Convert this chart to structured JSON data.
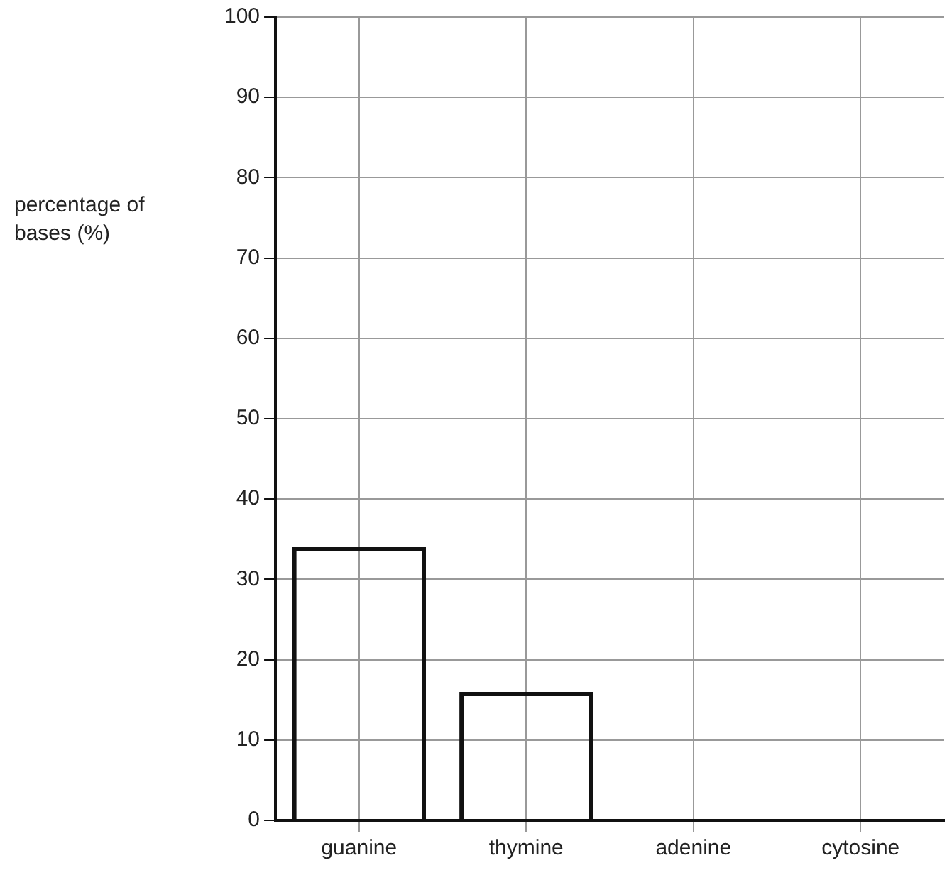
{
  "chart_data": {
    "type": "bar",
    "ylabel": "percentage of bases (%)",
    "categories": [
      "guanine",
      "thymine",
      "adenine",
      "cytosine"
    ],
    "values": [
      34,
      16,
      null,
      null
    ],
    "color": "#111111",
    "ylim": [
      0,
      100
    ],
    "yticks": [
      0,
      10,
      20,
      30,
      40,
      50,
      60,
      70,
      80,
      90,
      100
    ],
    "grid": true,
    "legend": false
  }
}
